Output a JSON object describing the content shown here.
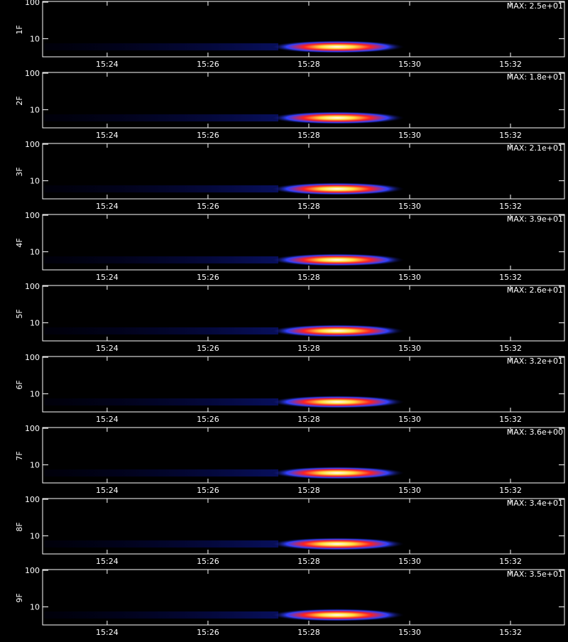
{
  "chart_data": [
    {
      "type": "spectrogram",
      "ylabel": "1F",
      "annotation": "MAX: 2.5e+01",
      "ylog": true,
      "xlim": [
        22.72,
        33.07
      ],
      "ylim": [
        3.2,
        105
      ],
      "yticks": [
        10,
        100
      ],
      "xticks": [
        {
          "value": 24,
          "label": "15:24"
        },
        {
          "value": 26,
          "label": "15:26"
        },
        {
          "value": 28,
          "label": "15:28"
        },
        {
          "value": 30,
          "label": "15:30"
        },
        {
          "value": 32,
          "label": "15:32"
        }
      ]
    },
    {
      "type": "spectrogram",
      "ylabel": "2F",
      "annotation": "MAX: 1.8e+01",
      "ylog": true,
      "xlim": [
        22.72,
        33.07
      ],
      "ylim": [
        3.2,
        105
      ],
      "yticks": [
        10,
        100
      ],
      "xticks": [
        {
          "value": 24,
          "label": "15:24"
        },
        {
          "value": 26,
          "label": "15:26"
        },
        {
          "value": 28,
          "label": "15:28"
        },
        {
          "value": 30,
          "label": "15:30"
        },
        {
          "value": 32,
          "label": "15:32"
        }
      ]
    },
    {
      "type": "spectrogram",
      "ylabel": "3F",
      "annotation": "MAX: 2.1e+01",
      "ylog": true,
      "xlim": [
        22.72,
        33.07
      ],
      "ylim": [
        3.2,
        105
      ],
      "yticks": [
        10,
        100
      ],
      "xticks": [
        {
          "value": 24,
          "label": "15:24"
        },
        {
          "value": 26,
          "label": "15:26"
        },
        {
          "value": 28,
          "label": "15:28"
        },
        {
          "value": 30,
          "label": "15:30"
        },
        {
          "value": 32,
          "label": "15:32"
        }
      ]
    },
    {
      "type": "spectrogram",
      "ylabel": "4F",
      "annotation": "MAX: 3.9e+01",
      "ylog": true,
      "xlim": [
        22.72,
        33.07
      ],
      "ylim": [
        3.2,
        105
      ],
      "yticks": [
        10,
        100
      ],
      "xticks": [
        {
          "value": 24,
          "label": "15:24"
        },
        {
          "value": 26,
          "label": "15:26"
        },
        {
          "value": 28,
          "label": "15:28"
        },
        {
          "value": 30,
          "label": "15:30"
        },
        {
          "value": 32,
          "label": "15:32"
        }
      ]
    },
    {
      "type": "spectrogram",
      "ylabel": "5F",
      "annotation": "MAX: 2.6e+01",
      "ylog": true,
      "xlim": [
        22.72,
        33.07
      ],
      "ylim": [
        3.2,
        105
      ],
      "yticks": [
        10,
        100
      ],
      "xticks": [
        {
          "value": 24,
          "label": "15:24"
        },
        {
          "value": 26,
          "label": "15:26"
        },
        {
          "value": 28,
          "label": "15:28"
        },
        {
          "value": 30,
          "label": "15:30"
        },
        {
          "value": 32,
          "label": "15:32"
        }
      ]
    },
    {
      "type": "spectrogram",
      "ylabel": "6F",
      "annotation": "MAX: 3.2e+01",
      "ylog": true,
      "xlim": [
        22.72,
        33.07
      ],
      "ylim": [
        3.2,
        105
      ],
      "yticks": [
        10,
        100
      ],
      "xticks": [
        {
          "value": 24,
          "label": "15:24"
        },
        {
          "value": 26,
          "label": "15:26"
        },
        {
          "value": 28,
          "label": "15:28"
        },
        {
          "value": 30,
          "label": "15:30"
        },
        {
          "value": 32,
          "label": "15:32"
        }
      ]
    },
    {
      "type": "spectrogram",
      "ylabel": "7F",
      "annotation": "MAX: 3.6e+00",
      "ylog": true,
      "xlim": [
        22.72,
        33.07
      ],
      "ylim": [
        3.2,
        105
      ],
      "yticks": [
        10,
        100
      ],
      "xticks": [
        {
          "value": 24,
          "label": "15:24"
        },
        {
          "value": 26,
          "label": "15:26"
        },
        {
          "value": 28,
          "label": "15:28"
        },
        {
          "value": 30,
          "label": "15:30"
        },
        {
          "value": 32,
          "label": "15:32"
        }
      ]
    },
    {
      "type": "spectrogram",
      "ylabel": "8F",
      "annotation": "MAX: 3.4e+01",
      "ylog": true,
      "xlim": [
        22.72,
        33.07
      ],
      "ylim": [
        3.2,
        105
      ],
      "yticks": [
        10,
        100
      ],
      "xticks": [
        {
          "value": 24,
          "label": "15:24"
        },
        {
          "value": 26,
          "label": "15:26"
        },
        {
          "value": 28,
          "label": "15:28"
        },
        {
          "value": 30,
          "label": "15:30"
        },
        {
          "value": 32,
          "label": "15:32"
        }
      ]
    },
    {
      "type": "spectrogram",
      "ylabel": "9F",
      "annotation": "MAX: 3.5e+01",
      "ylog": true,
      "xlim": [
        22.72,
        33.07
      ],
      "ylim": [
        3.2,
        105
      ],
      "yticks": [
        10,
        100
      ],
      "xticks": [
        {
          "value": 24,
          "label": "15:24"
        },
        {
          "value": 26,
          "label": "15:26"
        },
        {
          "value": 28,
          "label": "15:28"
        },
        {
          "value": 30,
          "label": "15:30"
        },
        {
          "value": 32,
          "label": "15:32"
        }
      ]
    }
  ]
}
